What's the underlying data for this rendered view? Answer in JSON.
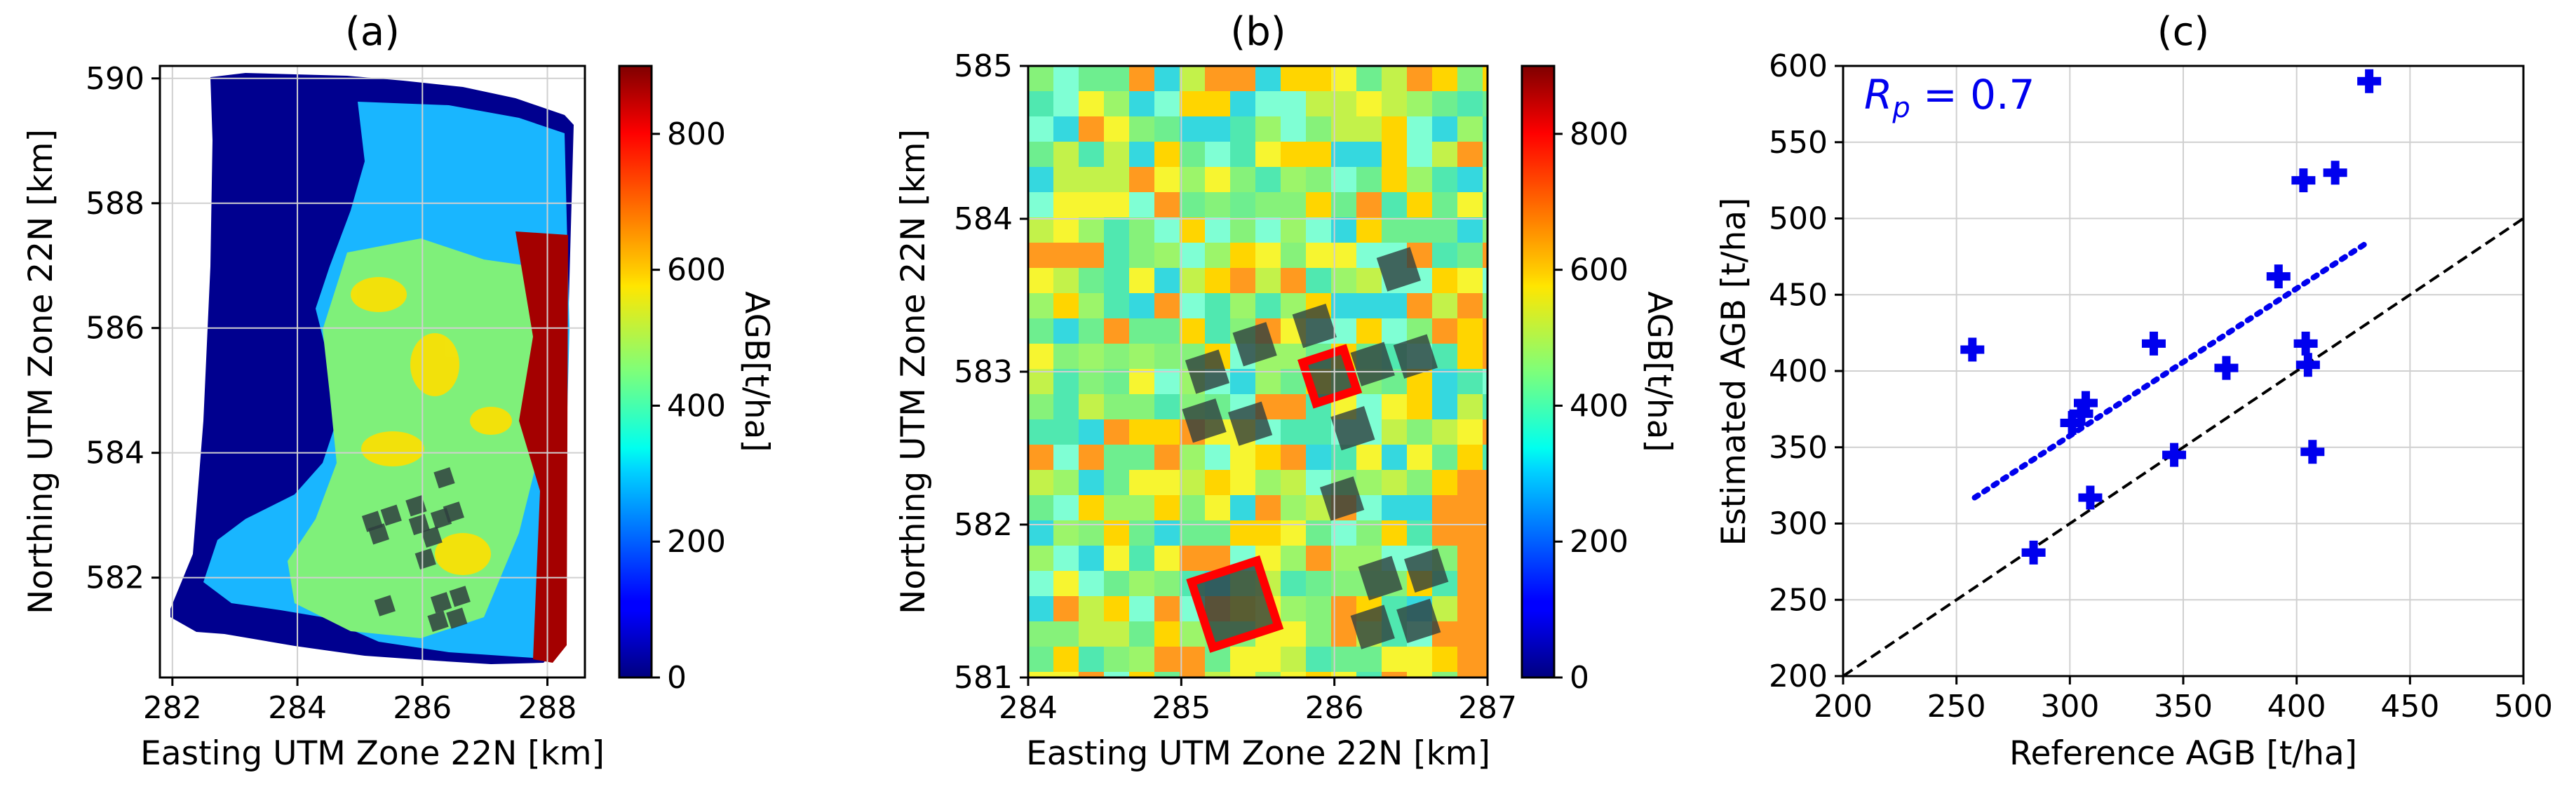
{
  "colors": {
    "ref_line": "#000000",
    "fit_line": "#0000ee",
    "markers": "#0000ee",
    "annotation": "#0000ee",
    "plot_frame": "#e74c3c",
    "grid": "#d0d0d0"
  },
  "chart_data": [
    {
      "type": "heatmap",
      "title": "(a)",
      "xlabel": "Easting UTM Zone 22N [km]",
      "ylabel": "Northing UTM Zone 22N [km]",
      "xlim": [
        281.8,
        288.6
      ],
      "ylim": [
        580.4,
        590.2
      ],
      "xticks": [
        "282",
        "284",
        "286",
        "288"
      ],
      "yticks": [
        "582",
        "584",
        "586",
        "588",
        "590"
      ],
      "grid": true,
      "colorbar": {
        "label": "AGB[t/ha]",
        "range": [
          0,
          900
        ],
        "ticks": [
          "0",
          "200",
          "400",
          "600",
          "800"
        ]
      },
      "plots": [
        {
          "x": 285.2,
          "y": 582.9
        },
        {
          "x": 285.5,
          "y": 583.0
        },
        {
          "x": 285.9,
          "y": 583.15
        },
        {
          "x": 285.3,
          "y": 582.7
        },
        {
          "x": 285.95,
          "y": 582.85
        },
        {
          "x": 286.3,
          "y": 582.95
        },
        {
          "x": 286.5,
          "y": 583.05
        },
        {
          "x": 286.15,
          "y": 582.65
        },
        {
          "x": 286.35,
          "y": 583.6
        },
        {
          "x": 286.05,
          "y": 582.3
        },
        {
          "x": 285.4,
          "y": 581.55
        },
        {
          "x": 286.3,
          "y": 581.6
        },
        {
          "x": 286.6,
          "y": 581.7
        },
        {
          "x": 286.25,
          "y": 581.3
        },
        {
          "x": 286.55,
          "y": 581.35
        }
      ]
    },
    {
      "type": "heatmap",
      "title": "(b)",
      "xlabel": "Easting UTM Zone 22N [km]",
      "ylabel": "Northing UTM Zone 22N [km]",
      "xlim": [
        284,
        287
      ],
      "ylim": [
        581,
        585
      ],
      "xticks": [
        "284",
        "285",
        "286",
        "287"
      ],
      "yticks": [
        "581",
        "582",
        "583",
        "584",
        "585"
      ],
      "grid": true,
      "colorbar": {
        "label": "AGB[t/ha]",
        "range": [
          0,
          900
        ],
        "ticks": [
          "0",
          "200",
          "400",
          "600",
          "800"
        ]
      },
      "plots": [
        {
          "x": 286.42,
          "y": 583.67,
          "size": 0.23,
          "highlight": false
        },
        {
          "x": 285.17,
          "y": 583.0,
          "size": 0.23,
          "highlight": false
        },
        {
          "x": 285.48,
          "y": 583.18,
          "size": 0.23,
          "highlight": false
        },
        {
          "x": 285.87,
          "y": 583.3,
          "size": 0.23,
          "highlight": false
        },
        {
          "x": 285.97,
          "y": 582.97,
          "size": 0.28,
          "highlight": true
        },
        {
          "x": 286.25,
          "y": 583.05,
          "size": 0.23,
          "highlight": false
        },
        {
          "x": 286.53,
          "y": 583.1,
          "size": 0.23,
          "highlight": false
        },
        {
          "x": 285.15,
          "y": 582.68,
          "size": 0.23,
          "highlight": false
        },
        {
          "x": 285.45,
          "y": 582.66,
          "size": 0.23,
          "highlight": false
        },
        {
          "x": 286.12,
          "y": 582.63,
          "size": 0.23,
          "highlight": false
        },
        {
          "x": 286.05,
          "y": 582.17,
          "size": 0.23,
          "highlight": false
        },
        {
          "x": 285.35,
          "y": 581.48,
          "size": 0.45,
          "highlight": true
        },
        {
          "x": 286.3,
          "y": 581.65,
          "size": 0.23,
          "highlight": false
        },
        {
          "x": 286.6,
          "y": 581.7,
          "size": 0.23,
          "highlight": false
        },
        {
          "x": 286.25,
          "y": 581.33,
          "size": 0.23,
          "highlight": false
        },
        {
          "x": 286.55,
          "y": 581.37,
          "size": 0.23,
          "highlight": false
        }
      ]
    },
    {
      "type": "scatter",
      "title": "(c)",
      "xlabel": "Reference AGB [t/ha]",
      "ylabel": "Estimated AGB [t/ha]",
      "xlim": [
        200,
        500
      ],
      "ylim": [
        200,
        600
      ],
      "xticks": [
        200,
        250,
        300,
        350,
        400,
        450,
        500
      ],
      "yticks": [
        200,
        250,
        300,
        350,
        400,
        450,
        500,
        550,
        600
      ],
      "grid": true,
      "annotation_prefix": "R",
      "annotation_sub": "p",
      "annotation_rest": " = 0.7",
      "points": [
        {
          "x": 257,
          "y": 414
        },
        {
          "x": 284,
          "y": 281
        },
        {
          "x": 301,
          "y": 366
        },
        {
          "x": 305,
          "y": 372
        },
        {
          "x": 307,
          "y": 379
        },
        {
          "x": 309,
          "y": 317
        },
        {
          "x": 337,
          "y": 418
        },
        {
          "x": 346,
          "y": 345
        },
        {
          "x": 369,
          "y": 402
        },
        {
          "x": 392,
          "y": 462
        },
        {
          "x": 403,
          "y": 525
        },
        {
          "x": 404,
          "y": 418
        },
        {
          "x": 405,
          "y": 404
        },
        {
          "x": 407,
          "y": 347
        },
        {
          "x": 417,
          "y": 530
        },
        {
          "x": 432,
          "y": 590
        }
      ],
      "fit_line": {
        "x": [
          258,
          432
        ],
        "y": [
          317,
          485
        ]
      },
      "ref_line": {
        "x": [
          200,
          500
        ],
        "y": [
          200,
          500
        ]
      }
    }
  ]
}
